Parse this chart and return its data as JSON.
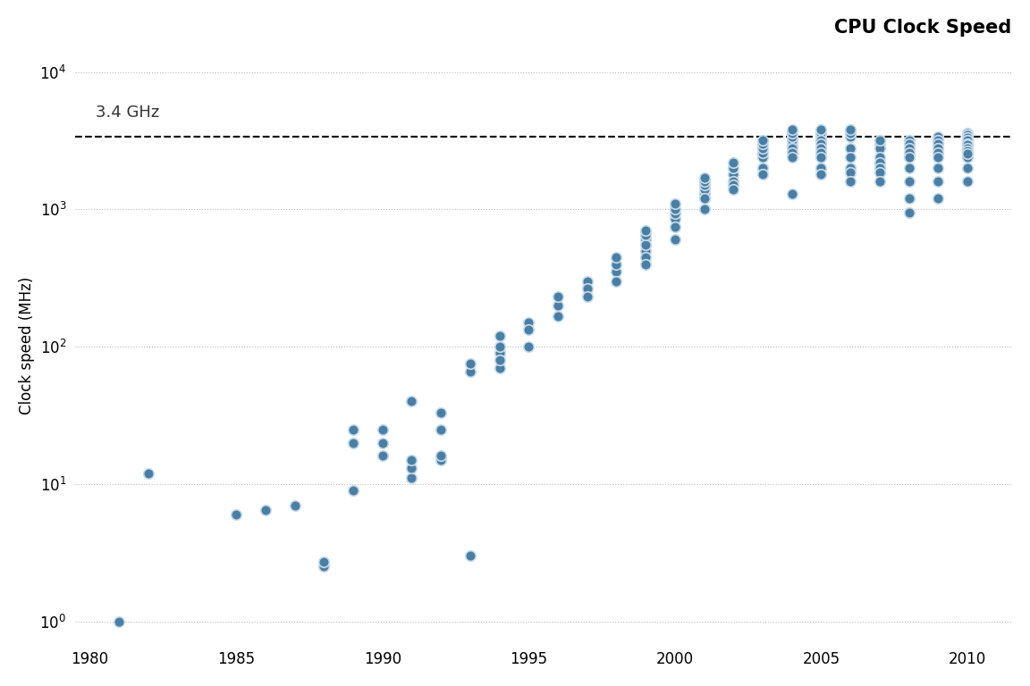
{
  "title": "CPU Clock Speed",
  "ylabel": "Clock speed (MHz)",
  "xlim": [
    1979.5,
    2011.5
  ],
  "ylim_log": [
    0.7,
    15000
  ],
  "dashed_line_y": 3400,
  "dashed_label": "3.4 GHz",
  "dot_color": "#4a7fa5",
  "dot_edgecolor": "#c8dcea",
  "dot_size": 70,
  "dot_linewidth": 1.2,
  "background_color": "#ffffff",
  "xticks": [
    1980,
    1985,
    1990,
    1995,
    2000,
    2005,
    2010
  ],
  "data": [
    [
      1981,
      1.0
    ],
    [
      1982,
      12.0
    ],
    [
      1985,
      6.0
    ],
    [
      1986,
      6.5
    ],
    [
      1987,
      7.0
    ],
    [
      1988,
      2.5
    ],
    [
      1988,
      2.7
    ],
    [
      1989,
      9.0
    ],
    [
      1989,
      20.0
    ],
    [
      1989,
      25.0
    ],
    [
      1990,
      16.0
    ],
    [
      1990,
      20.0
    ],
    [
      1990,
      25.0
    ],
    [
      1991,
      11.0
    ],
    [
      1991,
      13.0
    ],
    [
      1991,
      15.0
    ],
    [
      1991,
      40.0
    ],
    [
      1992,
      25.0
    ],
    [
      1992,
      33.0
    ],
    [
      1992,
      15.0
    ],
    [
      1992,
      16.0
    ],
    [
      1993,
      3.0
    ],
    [
      1993,
      66.0
    ],
    [
      1993,
      75.0
    ],
    [
      1994,
      70.0
    ],
    [
      1994,
      90.0
    ],
    [
      1994,
      100.0
    ],
    [
      1994,
      120.0
    ],
    [
      1994,
      80.0
    ],
    [
      1995,
      150.0
    ],
    [
      1995,
      133.0
    ],
    [
      1995,
      100.0
    ],
    [
      1996,
      200.0
    ],
    [
      1996,
      166.0
    ],
    [
      1996,
      233.0
    ],
    [
      1997,
      300.0
    ],
    [
      1997,
      266.0
    ],
    [
      1997,
      233.0
    ],
    [
      1998,
      350.0
    ],
    [
      1998,
      400.0
    ],
    [
      1998,
      450.0
    ],
    [
      1998,
      300.0
    ],
    [
      1999,
      500.0
    ],
    [
      1999,
      600.0
    ],
    [
      1999,
      550.0
    ],
    [
      1999,
      650.0
    ],
    [
      1999,
      700.0
    ],
    [
      1999,
      450.0
    ],
    [
      1999,
      400.0
    ],
    [
      2000,
      850.0
    ],
    [
      2000,
      933.0
    ],
    [
      2000,
      1000.0
    ],
    [
      2000,
      1100.0
    ],
    [
      2000,
      750.0
    ],
    [
      2000,
      600.0
    ],
    [
      2001,
      1300.0
    ],
    [
      2001,
      1400.0
    ],
    [
      2001,
      1500.0
    ],
    [
      2001,
      1600.0
    ],
    [
      2001,
      1700.0
    ],
    [
      2001,
      1200.0
    ],
    [
      2001,
      1000.0
    ],
    [
      2002,
      1800.0
    ],
    [
      2002,
      2000.0
    ],
    [
      2002,
      2200.0
    ],
    [
      2002,
      1600.0
    ],
    [
      2002,
      1500.0
    ],
    [
      2002,
      1400.0
    ],
    [
      2003,
      2400.0
    ],
    [
      2003,
      2600.0
    ],
    [
      2003,
      2800.0
    ],
    [
      2003,
      3000.0
    ],
    [
      2003,
      3200.0
    ],
    [
      2003,
      2000.0
    ],
    [
      2003,
      1800.0
    ],
    [
      2004,
      3000.0
    ],
    [
      2004,
      3200.0
    ],
    [
      2004,
      3400.0
    ],
    [
      2004,
      3600.0
    ],
    [
      2004,
      3800.0
    ],
    [
      2004,
      2800.0
    ],
    [
      2004,
      2600.0
    ],
    [
      2004,
      2400.0
    ],
    [
      2004,
      1300.0
    ],
    [
      2005,
      3400.0
    ],
    [
      2005,
      3600.0
    ],
    [
      2005,
      3800.0
    ],
    [
      2005,
      3200.0
    ],
    [
      2005,
      3000.0
    ],
    [
      2005,
      2800.0
    ],
    [
      2005,
      2600.0
    ],
    [
      2005,
      2400.0
    ],
    [
      2005,
      2000.0
    ],
    [
      2005,
      1800.0
    ],
    [
      2006,
      3400.0
    ],
    [
      2006,
      3600.0
    ],
    [
      2006,
      3800.0
    ],
    [
      2006,
      2800.0
    ],
    [
      2006,
      2400.0
    ],
    [
      2006,
      2000.0
    ],
    [
      2006,
      1867.0
    ],
    [
      2006,
      1600.0
    ],
    [
      2007,
      3000.0
    ],
    [
      2007,
      2800.0
    ],
    [
      2007,
      2400.0
    ],
    [
      2007,
      2200.0
    ],
    [
      2007,
      2000.0
    ],
    [
      2007,
      1860.0
    ],
    [
      2007,
      1600.0
    ],
    [
      2007,
      3200.0
    ],
    [
      2008,
      3200.0
    ],
    [
      2008,
      3000.0
    ],
    [
      2008,
      2800.0
    ],
    [
      2008,
      2600.0
    ],
    [
      2008,
      2400.0
    ],
    [
      2008,
      2000.0
    ],
    [
      2008,
      1600.0
    ],
    [
      2008,
      1200.0
    ],
    [
      2008,
      950.0
    ],
    [
      2009,
      3400.0
    ],
    [
      2009,
      3200.0
    ],
    [
      2009,
      3000.0
    ],
    [
      2009,
      2800.0
    ],
    [
      2009,
      2600.0
    ],
    [
      2009,
      2400.0
    ],
    [
      2009,
      2000.0
    ],
    [
      2009,
      1600.0
    ],
    [
      2009,
      1200.0
    ],
    [
      2010,
      3400.0
    ],
    [
      2010,
      3200.0
    ],
    [
      2010,
      3000.0
    ],
    [
      2010,
      2800.0
    ],
    [
      2010,
      2600.0
    ],
    [
      2010,
      2400.0
    ],
    [
      2010,
      2000.0
    ],
    [
      2010,
      1600.0
    ],
    [
      2010,
      3600.0
    ],
    [
      2010,
      3466.0
    ],
    [
      2010,
      3333.0
    ],
    [
      2010,
      3200.0
    ],
    [
      2010,
      3000.0
    ],
    [
      2010,
      2933.0
    ],
    [
      2010,
      2800.0
    ],
    [
      2010,
      2667.0
    ],
    [
      2010,
      2533.0
    ]
  ]
}
